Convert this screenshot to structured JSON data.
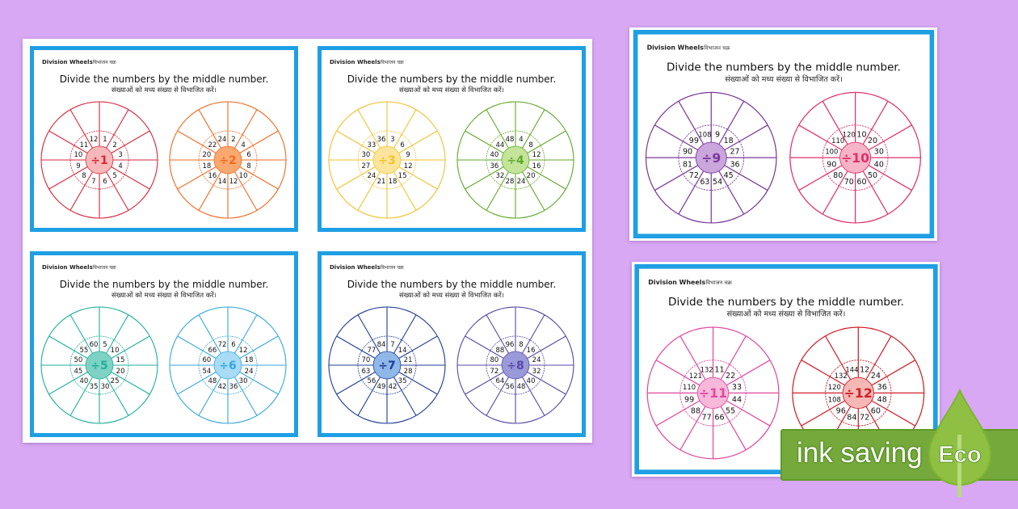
{
  "colors": {
    "background": "#d8a8f4",
    "card_border": "#1e9fe4",
    "eco_green": "#76a93b",
    "leaf_green": "#8fc043"
  },
  "card_text": {
    "header": "Division Wheels",
    "header_hindi": "विभाजन चक्र",
    "title": "Divide the numbers by the middle number.",
    "subtitle": "संख्याओं को मध्य संख्या से विभाजित करें।"
  },
  "cards": [
    {
      "wheels": [
        {
          "label": "÷1",
          "color": "#d8263a",
          "fill": "#f6b8b8",
          "numbers": [
            1,
            2,
            3,
            4,
            5,
            6,
            7,
            8,
            9,
            10,
            11,
            12
          ]
        },
        {
          "label": "÷2",
          "color": "#f06a22",
          "fill": "#f9a870",
          "numbers": [
            2,
            4,
            6,
            8,
            10,
            12,
            14,
            16,
            18,
            20,
            22,
            24
          ]
        }
      ]
    },
    {
      "wheels": [
        {
          "label": "÷3",
          "color": "#f2c12e",
          "fill": "#fbe59a",
          "numbers": [
            3,
            6,
            9,
            12,
            15,
            18,
            21,
            24,
            27,
            30,
            33,
            36
          ]
        },
        {
          "label": "÷4",
          "color": "#62a82a",
          "fill": "#c4e49a",
          "numbers": [
            4,
            8,
            12,
            16,
            20,
            24,
            28,
            32,
            36,
            40,
            44,
            48
          ]
        }
      ]
    },
    {
      "wheels": [
        {
          "label": "÷5",
          "color": "#1faf9b",
          "fill": "#7fd2c3",
          "numbers": [
            5,
            10,
            15,
            20,
            25,
            30,
            35,
            40,
            45,
            50,
            55,
            60
          ]
        },
        {
          "label": "÷6",
          "color": "#35a7df",
          "fill": "#a8dcf5",
          "numbers": [
            6,
            12,
            18,
            24,
            30,
            36,
            42,
            48,
            54,
            60,
            66,
            72
          ]
        }
      ]
    },
    {
      "wheels": [
        {
          "label": "÷7",
          "color": "#1f3c9a",
          "fill": "#8fb8e8",
          "numbers": [
            7,
            14,
            21,
            28,
            35,
            42,
            49,
            56,
            63,
            70,
            77,
            84
          ]
        },
        {
          "label": "÷8",
          "color": "#5548a8",
          "fill": "#9a9ad8",
          "numbers": [
            8,
            16,
            24,
            32,
            40,
            48,
            56,
            64,
            72,
            80,
            88,
            96
          ]
        }
      ]
    },
    {
      "wheels": [
        {
          "label": "÷9",
          "color": "#7a3a9a",
          "fill": "#c9a6dc",
          "numbers": [
            9,
            18,
            27,
            36,
            45,
            54,
            63,
            72,
            81,
            90,
            99,
            108
          ]
        },
        {
          "label": "÷10",
          "color": "#e0306a",
          "fill": "#f6b4c8",
          "numbers": [
            10,
            20,
            30,
            40,
            50,
            60,
            70,
            80,
            90,
            100,
            110,
            120
          ]
        }
      ]
    },
    {
      "wheels": [
        {
          "label": "÷11",
          "color": "#e04aa0",
          "fill": "#f7b8da",
          "numbers": [
            11,
            22,
            33,
            44,
            55,
            66,
            77,
            88,
            99,
            110,
            121,
            132
          ]
        },
        {
          "label": "÷12",
          "color": "#d0202a",
          "fill": "#f6b8b4",
          "numbers": [
            12,
            24,
            36,
            48,
            60,
            72,
            84,
            96,
            108,
            120,
            132,
            144
          ]
        }
      ]
    }
  ],
  "badge": {
    "text": "ink saving",
    "leaf_text": "Eco"
  }
}
